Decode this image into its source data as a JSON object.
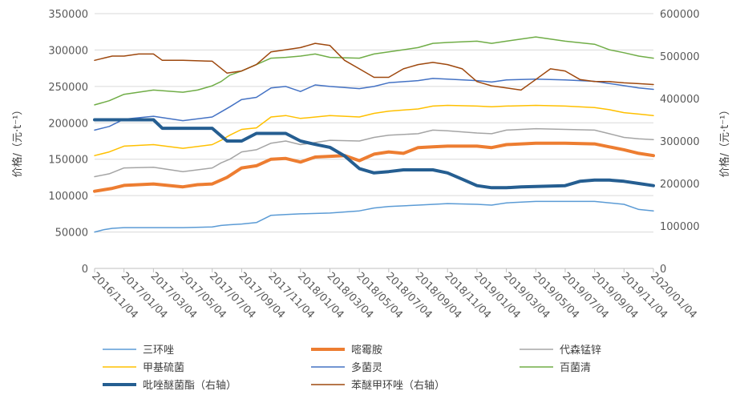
{
  "chart_data": {
    "type": "line",
    "title": "",
    "ylabel_left": "价格/（元·t⁻¹）",
    "ylabel_right": "价格/（元·t⁻¹）",
    "ylim_left": [
      0,
      350000
    ],
    "ylim_right": [
      0,
      600000
    ],
    "yticks_left": [
      "0",
      "50000",
      "100000",
      "150000",
      "200000",
      "250000",
      "300000",
      "350000"
    ],
    "yticks_right": [
      "0",
      "100000",
      "200000",
      "300000",
      "400000",
      "500000",
      "600000"
    ],
    "x_ticks": [
      "2016/11/04",
      "2017/01/04",
      "2017/03/04",
      "2017/05/04",
      "2017/07/04",
      "2017/09/04",
      "2017/11/04",
      "2018/01/04",
      "2018/03/04",
      "2018/05/04",
      "2018/07/04",
      "2018/09/04",
      "2018/11/04",
      "2019/01/04",
      "2019/03/04",
      "2019/05/04",
      "2019/07/04",
      "2019/09/04",
      "2019/11/04",
      "2020/01/04"
    ],
    "grid": "horizontal",
    "legend_position": "bottom",
    "series": [
      {
        "name": "三环唑",
        "axis": "left",
        "color": "#5B9BD5",
        "width": 1.5,
        "values": [
          [
            0,
            50000
          ],
          [
            0.3,
            53000
          ],
          [
            0.6,
            55000
          ],
          [
            1,
            56000
          ],
          [
            2,
            56000
          ],
          [
            3,
            56000
          ],
          [
            4,
            57000
          ],
          [
            4.3,
            59000
          ],
          [
            4.6,
            60000
          ],
          [
            5,
            61000
          ],
          [
            5.5,
            63000
          ],
          [
            6,
            73000
          ],
          [
            6.5,
            74000
          ],
          [
            7,
            75000
          ],
          [
            8,
            76000
          ],
          [
            9,
            79000
          ],
          [
            9.5,
            83000
          ],
          [
            10,
            85000
          ],
          [
            11,
            87000
          ],
          [
            12,
            89000
          ],
          [
            13,
            88000
          ],
          [
            13.5,
            87000
          ],
          [
            14,
            90000
          ],
          [
            15,
            92000
          ],
          [
            16,
            92000
          ],
          [
            17,
            92000
          ],
          [
            18,
            88000
          ],
          [
            18.5,
            81000
          ],
          [
            19,
            79000
          ]
        ]
      },
      {
        "name": "嘧霉胺",
        "axis": "left",
        "color": "#ED7D31",
        "width": 4,
        "values": [
          [
            0,
            106000
          ],
          [
            0.3,
            108000
          ],
          [
            0.6,
            110000
          ],
          [
            1,
            114000
          ],
          [
            2,
            116000
          ],
          [
            3,
            112000
          ],
          [
            3.5,
            115000
          ],
          [
            4,
            116000
          ],
          [
            4.5,
            125000
          ],
          [
            5,
            138000
          ],
          [
            5.5,
            141000
          ],
          [
            6,
            150000
          ],
          [
            6.5,
            151000
          ],
          [
            7,
            146000
          ],
          [
            7.5,
            153000
          ],
          [
            8,
            154000
          ],
          [
            8.5,
            155000
          ],
          [
            9,
            148000
          ],
          [
            9.5,
            157000
          ],
          [
            10,
            160000
          ],
          [
            10.5,
            158000
          ],
          [
            11,
            166000
          ],
          [
            11.5,
            167000
          ],
          [
            12,
            168000
          ],
          [
            13,
            168000
          ],
          [
            13.5,
            166000
          ],
          [
            14,
            170000
          ],
          [
            15,
            172000
          ],
          [
            16,
            172000
          ],
          [
            17,
            171000
          ],
          [
            17.5,
            167000
          ],
          [
            18,
            163000
          ],
          [
            18.5,
            158000
          ],
          [
            19,
            155000
          ]
        ]
      },
      {
        "name": "代森锰锌",
        "axis": "left",
        "color": "#A5A5A5",
        "width": 1.5,
        "values": [
          [
            0,
            126000
          ],
          [
            0.5,
            130000
          ],
          [
            1,
            138000
          ],
          [
            2,
            139000
          ],
          [
            3,
            133000
          ],
          [
            4,
            138000
          ],
          [
            4.3,
            145000
          ],
          [
            4.6,
            150000
          ],
          [
            5,
            160000
          ],
          [
            5.5,
            163000
          ],
          [
            6,
            172000
          ],
          [
            6.5,
            175000
          ],
          [
            7,
            170000
          ],
          [
            8,
            176000
          ],
          [
            9,
            175000
          ],
          [
            9.5,
            180000
          ],
          [
            10,
            183000
          ],
          [
            11,
            185000
          ],
          [
            11.5,
            190000
          ],
          [
            12,
            189000
          ],
          [
            13,
            186000
          ],
          [
            13.5,
            185000
          ],
          [
            14,
            190000
          ],
          [
            15,
            192000
          ],
          [
            16,
            191000
          ],
          [
            17,
            190000
          ],
          [
            17.5,
            185000
          ],
          [
            18,
            180000
          ],
          [
            18.5,
            178000
          ],
          [
            19,
            177000
          ]
        ]
      },
      {
        "name": "甲基硫菌",
        "axis": "left",
        "color": "#FFC000",
        "width": 1.5,
        "values": [
          [
            0,
            155000
          ],
          [
            0.5,
            160000
          ],
          [
            1,
            168000
          ],
          [
            2,
            170000
          ],
          [
            3,
            165000
          ],
          [
            4,
            170000
          ],
          [
            4.3,
            176000
          ],
          [
            4.6,
            183000
          ],
          [
            5,
            191000
          ],
          [
            5.5,
            193000
          ],
          [
            6,
            208000
          ],
          [
            6.5,
            210000
          ],
          [
            7,
            206000
          ],
          [
            8,
            210000
          ],
          [
            9,
            208000
          ],
          [
            9.5,
            213000
          ],
          [
            10,
            216000
          ],
          [
            11,
            219000
          ],
          [
            11.5,
            223000
          ],
          [
            12,
            224000
          ],
          [
            13,
            223000
          ],
          [
            13.5,
            222000
          ],
          [
            14,
            223000
          ],
          [
            15,
            224000
          ],
          [
            16,
            223000
          ],
          [
            17,
            221000
          ],
          [
            17.5,
            218000
          ],
          [
            18,
            214000
          ],
          [
            18.5,
            212000
          ],
          [
            19,
            210000
          ]
        ]
      },
      {
        "name": "多菌灵",
        "axis": "left",
        "color": "#4472C4",
        "width": 1.5,
        "values": [
          [
            0,
            190000
          ],
          [
            0.5,
            195000
          ],
          [
            1,
            205000
          ],
          [
            2,
            209000
          ],
          [
            3,
            203000
          ],
          [
            4,
            208000
          ],
          [
            4.3,
            215000
          ],
          [
            4.6,
            222000
          ],
          [
            5,
            232000
          ],
          [
            5.5,
            235000
          ],
          [
            6,
            248000
          ],
          [
            6.5,
            250000
          ],
          [
            7,
            243000
          ],
          [
            7.5,
            252000
          ],
          [
            8,
            250000
          ],
          [
            9,
            247000
          ],
          [
            9.5,
            250000
          ],
          [
            10,
            255000
          ],
          [
            11,
            258000
          ],
          [
            11.5,
            261000
          ],
          [
            12,
            260000
          ],
          [
            13,
            258000
          ],
          [
            13.5,
            256000
          ],
          [
            14,
            259000
          ],
          [
            15,
            260000
          ],
          [
            16,
            259000
          ],
          [
            17,
            257000
          ],
          [
            17.5,
            254000
          ],
          [
            18,
            251000
          ],
          [
            18.5,
            248000
          ],
          [
            19,
            246000
          ]
        ]
      },
      {
        "name": "百菌清",
        "axis": "right",
        "color": "#70AD47",
        "width": 1.5,
        "values": [
          [
            0,
            385000
          ],
          [
            0.5,
            395000
          ],
          [
            1,
            410000
          ],
          [
            2,
            420000
          ],
          [
            3,
            415000
          ],
          [
            3.5,
            420000
          ],
          [
            4,
            430000
          ],
          [
            4.3,
            440000
          ],
          [
            4.6,
            455000
          ],
          [
            5,
            465000
          ],
          [
            5.5,
            480000
          ],
          [
            6,
            495000
          ],
          [
            6.5,
            497000
          ],
          [
            7,
            500000
          ],
          [
            7.5,
            505000
          ],
          [
            8,
            497000
          ],
          [
            9,
            495000
          ],
          [
            9.5,
            505000
          ],
          [
            10,
            510000
          ],
          [
            11,
            520000
          ],
          [
            11.5,
            530000
          ],
          [
            12,
            532000
          ],
          [
            13,
            535000
          ],
          [
            13.5,
            530000
          ],
          [
            14,
            535000
          ],
          [
            14.5,
            540000
          ],
          [
            15,
            545000
          ],
          [
            16,
            535000
          ],
          [
            17,
            528000
          ],
          [
            17.5,
            515000
          ],
          [
            18,
            508000
          ],
          [
            18.5,
            500000
          ],
          [
            19,
            495000
          ]
        ]
      },
      {
        "name": "吡唑醚菌酯（右轴）",
        "axis": "right",
        "color": "#255E91",
        "width": 4,
        "values": [
          [
            0,
            350000
          ],
          [
            0.5,
            350000
          ],
          [
            1,
            350000
          ],
          [
            2,
            350000
          ],
          [
            2.3,
            330000
          ],
          [
            3,
            330000
          ],
          [
            4,
            330000
          ],
          [
            4.5,
            300000
          ],
          [
            5,
            300000
          ],
          [
            5.5,
            318000
          ],
          [
            6,
            318000
          ],
          [
            6.5,
            318000
          ],
          [
            7,
            300000
          ],
          [
            7.5,
            292000
          ],
          [
            8,
            285000
          ],
          [
            8.5,
            265000
          ],
          [
            9,
            235000
          ],
          [
            9.5,
            225000
          ],
          [
            10,
            228000
          ],
          [
            10.5,
            232000
          ],
          [
            11,
            232000
          ],
          [
            11.5,
            232000
          ],
          [
            12,
            225000
          ],
          [
            12.5,
            210000
          ],
          [
            13,
            195000
          ],
          [
            13.5,
            190000
          ],
          [
            14,
            190000
          ],
          [
            14.5,
            192000
          ],
          [
            15,
            193000
          ],
          [
            16,
            195000
          ],
          [
            16.5,
            205000
          ],
          [
            17,
            208000
          ],
          [
            17.5,
            208000
          ],
          [
            18,
            205000
          ],
          [
            18.5,
            200000
          ],
          [
            19,
            195000
          ]
        ]
      },
      {
        "name": "苯醚甲环唑（右轴）",
        "axis": "right",
        "color": "#9E480E",
        "width": 1.5,
        "values": [
          [
            0,
            490000
          ],
          [
            0.3,
            495000
          ],
          [
            0.6,
            500000
          ],
          [
            1,
            500000
          ],
          [
            1.5,
            505000
          ],
          [
            2,
            505000
          ],
          [
            2.3,
            490000
          ],
          [
            3,
            490000
          ],
          [
            4,
            488000
          ],
          [
            4.5,
            460000
          ],
          [
            5,
            465000
          ],
          [
            5.5,
            480000
          ],
          [
            6,
            510000
          ],
          [
            6.5,
            515000
          ],
          [
            7,
            520000
          ],
          [
            7.5,
            530000
          ],
          [
            8,
            525000
          ],
          [
            8.5,
            490000
          ],
          [
            9,
            470000
          ],
          [
            9.5,
            450000
          ],
          [
            10,
            450000
          ],
          [
            10.5,
            470000
          ],
          [
            11,
            480000
          ],
          [
            11.5,
            485000
          ],
          [
            12,
            480000
          ],
          [
            12.5,
            470000
          ],
          [
            13,
            440000
          ],
          [
            13.5,
            430000
          ],
          [
            14,
            425000
          ],
          [
            14.5,
            420000
          ],
          [
            15,
            445000
          ],
          [
            15.5,
            470000
          ],
          [
            16,
            465000
          ],
          [
            16.5,
            445000
          ],
          [
            17,
            440000
          ],
          [
            17.5,
            440000
          ],
          [
            18,
            437000
          ],
          [
            18.5,
            435000
          ],
          [
            19,
            433000
          ]
        ]
      }
    ]
  }
}
